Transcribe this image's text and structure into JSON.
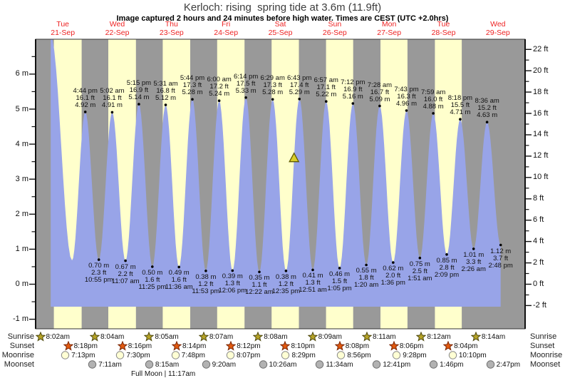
{
  "header": {
    "title": "Kerloch: rising  spring tide at 3.6m (11.9ft)",
    "subtitle": "Image captured 2 hours and 24 minutes before high water. Times are CEST (UTC +2.0hrs)"
  },
  "chart_data": {
    "type": "area",
    "title": "Kerloch: rising  spring tide at 3.6m (11.9ft)",
    "days": [
      {
        "name": "Tue",
        "date": "21-Sep"
      },
      {
        "name": "Wed",
        "date": "22-Sep"
      },
      {
        "name": "Thu",
        "date": "23-Sep"
      },
      {
        "name": "Fri",
        "date": "24-Sep"
      },
      {
        "name": "Sat",
        "date": "25-Sep"
      },
      {
        "name": "Sun",
        "date": "26-Sep"
      },
      {
        "name": "Mon",
        "date": "27-Sep"
      },
      {
        "name": "Tue",
        "date": "28-Sep"
      },
      {
        "name": "Wed",
        "date": "29-Sep"
      }
    ],
    "y_axis_left": {
      "unit": "m",
      "ticks": [
        6,
        5,
        4,
        3,
        2,
        1,
        0,
        -1
      ],
      "range_m": [
        -1.3,
        7.0
      ]
    },
    "y_axis_right": {
      "unit": "ft",
      "ticks": [
        22,
        20,
        18,
        16,
        14,
        12,
        10,
        8,
        6,
        4,
        2,
        0,
        -2
      ]
    },
    "high_tides": [
      {
        "day": 0,
        "time": "4:44 pm",
        "height_ft": "16.1",
        "height_m": "4.92"
      },
      {
        "day": 1,
        "time": "5:02 am",
        "height_ft": "16.1",
        "height_m": "4.91"
      },
      {
        "day": 1,
        "time": "5:15 pm",
        "height_ft": "16.9",
        "height_m": "5.14"
      },
      {
        "day": 2,
        "time": "5:31 am",
        "height_ft": "16.8",
        "height_m": "5.12"
      },
      {
        "day": 2,
        "time": "5:44 pm",
        "height_ft": "17.3",
        "height_m": "5.28"
      },
      {
        "day": 3,
        "time": "6:00 am",
        "height_ft": "17.2",
        "height_m": "5.24"
      },
      {
        "day": 3,
        "time": "6:14 pm",
        "height_ft": "17.5",
        "height_m": "5.33"
      },
      {
        "day": 4,
        "time": "6:29 am",
        "height_ft": "17.3",
        "height_m": "5.28"
      },
      {
        "day": 4,
        "time": "6:43 pm",
        "height_ft": "17.4",
        "height_m": "5.29"
      },
      {
        "day": 5,
        "time": "6:57 am",
        "height_ft": "17.1",
        "height_m": "5.22"
      },
      {
        "day": 5,
        "time": "7:12 pm",
        "height_ft": "16.9",
        "height_m": "5.16"
      },
      {
        "day": 6,
        "time": "7:28 am",
        "height_ft": "16.7",
        "height_m": "5.09"
      },
      {
        "day": 6,
        "time": "7:43 pm",
        "height_ft": "16.3",
        "height_m": "4.96"
      },
      {
        "day": 7,
        "time": "7:59 am",
        "height_ft": "16.0",
        "height_m": "4.88"
      },
      {
        "day": 7,
        "time": "8:18 pm",
        "height_ft": "15.5",
        "height_m": "4.71"
      },
      {
        "day": 8,
        "time": "8:36 am",
        "height_ft": "15.2",
        "height_m": "4.63"
      }
    ],
    "low_tides": [
      {
        "day": 0,
        "time": "10:55 pm",
        "height_ft": "2.3",
        "height_m": "0.70"
      },
      {
        "day": 1,
        "time": "11:07 am",
        "height_ft": "2.2",
        "height_m": "0.67"
      },
      {
        "day": 1,
        "time": "11:25 pm",
        "height_ft": "1.6",
        "height_m": "0.50"
      },
      {
        "day": 2,
        "time": "11:36 am",
        "height_ft": "1.6",
        "height_m": "0.49"
      },
      {
        "day": 2,
        "time": "11:53 pm",
        "height_ft": "1.2",
        "height_m": "0.38"
      },
      {
        "day": 3,
        "time": "12:06 pm",
        "height_ft": "1.3",
        "height_m": "0.39"
      },
      {
        "day": 4,
        "time": "12:22 am",
        "height_ft": "1.1",
        "height_m": "0.35"
      },
      {
        "day": 4,
        "time": "12:35 pm",
        "height_ft": "1.2",
        "height_m": "0.38"
      },
      {
        "day": 5,
        "time": "12:51 am",
        "height_ft": "1.3",
        "height_m": "0.41"
      },
      {
        "day": 5,
        "time": "1:05 pm",
        "height_ft": "1.5",
        "height_m": "0.46"
      },
      {
        "day": 6,
        "time": "1:20 am",
        "height_ft": "1.8",
        "height_m": "0.55"
      },
      {
        "day": 6,
        "time": "1:36 pm",
        "height_ft": "2.0",
        "height_m": "0.62"
      },
      {
        "day": 7,
        "time": "1:51 am",
        "height_ft": "2.5",
        "height_m": "0.75"
      },
      {
        "day": 7,
        "time": "2:09 pm",
        "height_ft": "2.8",
        "height_m": "0.85"
      },
      {
        "day": 8,
        "time": "2:26 am",
        "height_ft": "3.3",
        "height_m": "1.01"
      },
      {
        "day": 8,
        "time": "2:48 pm",
        "height_ft": "3.7",
        "height_m": "1.12"
      }
    ],
    "sea_level_marker": {
      "height_m": 3.6,
      "before_high_index": 8
    },
    "colors": {
      "day_band": "#ffffcc",
      "night_band": "#999999",
      "tide_fill": "#98a4e8",
      "day_label": "#ee2222",
      "axis": "#111111",
      "marker_fill": "#d9cd2a",
      "marker_stroke": "#5f5a00",
      "sunrise_fill": "#b5a226",
      "sunrise_stroke": "#4f4a10",
      "sunset_fill": "#e2590e",
      "sunset_stroke": "#7a2606",
      "moonrise_fill": "#ffffd4",
      "moonrise_stroke": "#8a8a8a",
      "moonset_fill": "#b2b2b2",
      "moonset_stroke": "#6f6f6f"
    }
  },
  "astro": {
    "rows": [
      {
        "label": "Sunrise",
        "icon": "sunrise-star-icon",
        "times": [
          {
            "day": 0,
            "time": "8:02am"
          },
          {
            "day": 1,
            "time": "8:04am"
          },
          {
            "day": 2,
            "time": "8:05am"
          },
          {
            "day": 3,
            "time": "8:07am"
          },
          {
            "day": 4,
            "time": "8:08am"
          },
          {
            "day": 5,
            "time": "8:09am"
          },
          {
            "day": 6,
            "time": "8:11am"
          },
          {
            "day": 7,
            "time": "8:12am"
          },
          {
            "day": 8,
            "time": "8:14am"
          }
        ]
      },
      {
        "label": "Sunset",
        "icon": "sunset-star-icon",
        "times": [
          {
            "day": 0,
            "time": "8:18pm"
          },
          {
            "day": 1,
            "time": "8:16pm"
          },
          {
            "day": 2,
            "time": "8:14pm"
          },
          {
            "day": 3,
            "time": "8:12pm"
          },
          {
            "day": 4,
            "time": "8:10pm"
          },
          {
            "day": 5,
            "time": "8:08pm"
          },
          {
            "day": 6,
            "time": "8:06pm"
          },
          {
            "day": 7,
            "time": "8:04pm"
          }
        ]
      },
      {
        "label": "Moonrise",
        "icon": "moonrise-circle-icon",
        "times": [
          {
            "day": 0,
            "time": "7:13pm"
          },
          {
            "day": 1,
            "time": "7:30pm"
          },
          {
            "day": 2,
            "time": "7:48pm"
          },
          {
            "day": 3,
            "time": "8:07pm"
          },
          {
            "day": 4,
            "time": "8:29pm"
          },
          {
            "day": 5,
            "time": "8:56pm"
          },
          {
            "day": 6,
            "time": "9:28pm"
          },
          {
            "day": 7,
            "time": "10:10pm"
          }
        ]
      },
      {
        "label": "Moonset",
        "icon": "moonset-circle-icon",
        "times": [
          {
            "day": 1,
            "time": "7:11am"
          },
          {
            "day": 2,
            "time": "8:15am"
          },
          {
            "day": 3,
            "time": "9:20am"
          },
          {
            "day": 4,
            "time": "10:26am"
          },
          {
            "day": 5,
            "time": "11:34am"
          },
          {
            "day": 6,
            "time": "12:41pm"
          },
          {
            "day": 7,
            "time": "1:46pm"
          },
          {
            "day": 8,
            "time": "2:47pm"
          }
        ]
      }
    ],
    "footnote": "Full Moon | 11:17am"
  }
}
